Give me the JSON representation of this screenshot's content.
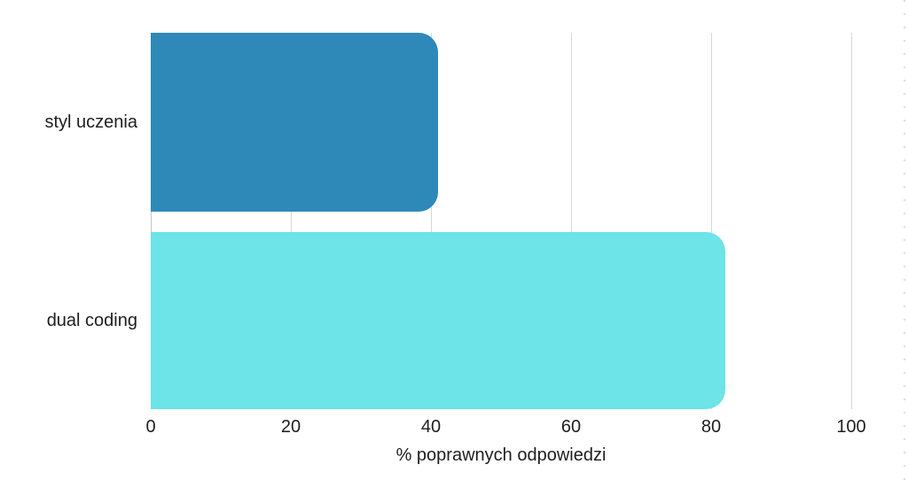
{
  "chart_data": {
    "type": "bar",
    "orientation": "horizontal",
    "title": "",
    "xlabel": "% poprawnych odpowiedzi",
    "ylabel": "",
    "categories": [
      "styl uczenia",
      "dual coding"
    ],
    "values": [
      41,
      82
    ],
    "xlim": [
      0,
      100
    ],
    "x_ticks": [
      "0",
      "20",
      "40",
      "60",
      "80",
      "100"
    ],
    "grid": true,
    "legend": false,
    "bar_colors": [
      "#2E89B8",
      "#6CE4E8"
    ]
  },
  "colors": {
    "background": "#FFFFFF",
    "gridline": "#D6D6D6",
    "zero_line": "#C3C7CA",
    "text": "#1E1E1E",
    "page_edge_dots": "#DCDCDC"
  }
}
